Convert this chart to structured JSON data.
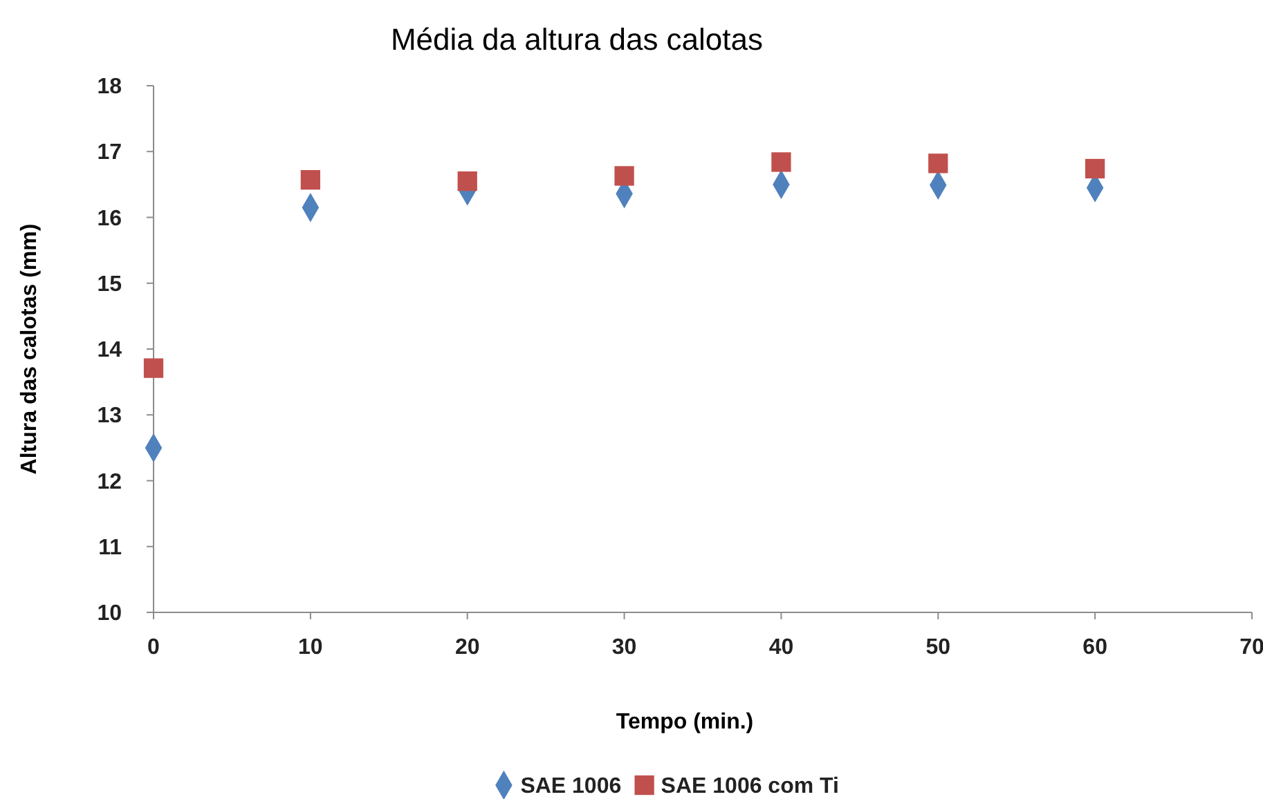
{
  "chart_data": {
    "type": "scatter",
    "title": "Média da altura das calotas",
    "xlabel": "Tempo (min.)",
    "ylabel": "Altura das calotas (mm)",
    "xlim": [
      0,
      70
    ],
    "xticks": [
      0,
      10,
      20,
      30,
      40,
      50,
      60,
      70
    ],
    "ylim": [
      10,
      18
    ],
    "yticks": [
      10,
      11,
      12,
      13,
      14,
      15,
      16,
      17,
      18
    ],
    "grid": false,
    "legend": "bottom",
    "x": [
      0,
      10,
      20,
      30,
      40,
      50,
      60
    ],
    "series": [
      {
        "name": "SAE 1006",
        "color": "#4f81bd",
        "marker": "diamond",
        "values": [
          12.5,
          16.15,
          16.4,
          16.36,
          16.5,
          16.49,
          16.45
        ]
      },
      {
        "name": "SAE 1006 com Ti",
        "color": "#c0504d",
        "marker": "square",
        "values": [
          13.71,
          16.57,
          16.55,
          16.63,
          16.84,
          16.82,
          16.74
        ]
      }
    ]
  }
}
